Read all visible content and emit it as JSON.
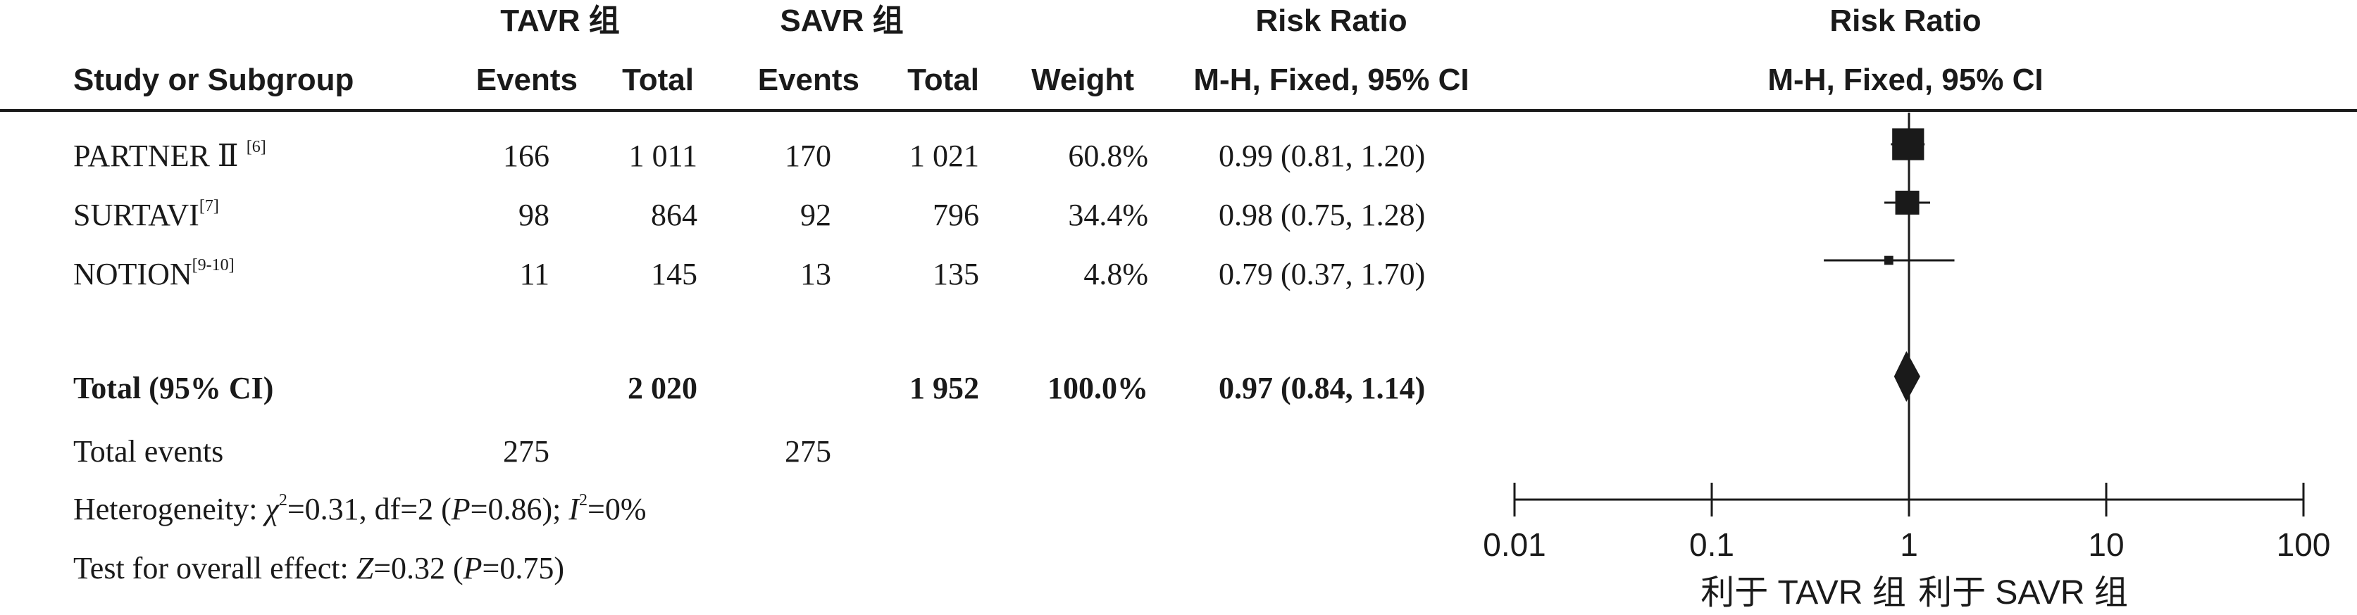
{
  "header": {
    "group1": "TAVR 组",
    "group2": "SAVR 组",
    "rr_title": "Risk Ratio",
    "plot_title": "Risk Ratio",
    "study_col": "Study or Subgroup",
    "events1": "Events",
    "total1": "Total",
    "events2": "Events",
    "total2": "Total",
    "weight": "Weight",
    "method": "M-H, Fixed, 95% CI",
    "plot_method": "M-H, Fixed, 95% CI"
  },
  "studies": [
    {
      "name": "PARTNER Ⅱ",
      "ref": "[6]",
      "e1": "166",
      "t1": "1 011",
      "e2": "170",
      "t2": "1 021",
      "weight": "60.8%",
      "ci": "0.99 (0.81, 1.20)"
    },
    {
      "name": "SURTAVI",
      "ref": "[7]",
      "e1": "98",
      "t1": "864",
      "e2": "92",
      "t2": "796",
      "weight": "34.4%",
      "ci": "0.98 (0.75, 1.28)"
    },
    {
      "name": "NOTION",
      "ref": "[9-10]",
      "e1": "11",
      "t1": "145",
      "e2": "13",
      "t2": "135",
      "weight": "4.8%",
      "ci": "0.79 (0.37, 1.70)"
    }
  ],
  "total": {
    "label": "Total (95% CI)",
    "t1": "2 020",
    "t2": "1 952",
    "weight": "100.0%",
    "ci": "0.97 (0.84, 1.14)"
  },
  "total_events": {
    "label": "Total events",
    "e1": "275",
    "e2": "275"
  },
  "heterogeneity": {
    "prefix": "Heterogeneity: ",
    "chi": "χ",
    "chi_sup": "2",
    "chi_val": "=0.31, df=2 (",
    "p": "P",
    "p_val": "=0.86); ",
    "i": "I",
    "i_sup": "2",
    "i_val": "=0%"
  },
  "overall": {
    "prefix": "Test for overall effect: ",
    "z": "Z",
    "z_val": "=0.32 (",
    "p": "P",
    "p_val": "=0.75)"
  },
  "chart_data": {
    "type": "scatter",
    "subtype": "forest-plot",
    "xscale": "log",
    "xlim": [
      0.01,
      100
    ],
    "xticks": [
      "0.01",
      "0.1",
      "1",
      "10",
      "100"
    ],
    "xtick_values": [
      0.01,
      0.1,
      1,
      10,
      100
    ],
    "reference_line": 1,
    "series": [
      {
        "name": "PARTNER Ⅱ",
        "rr": 0.99,
        "lo": 0.81,
        "hi": 1.2,
        "weight": 60.8
      },
      {
        "name": "SURTAVI",
        "rr": 0.98,
        "lo": 0.75,
        "hi": 1.28,
        "weight": 34.4
      },
      {
        "name": "NOTION",
        "rr": 0.79,
        "lo": 0.37,
        "hi": 1.7,
        "weight": 4.8
      }
    ],
    "pooled": {
      "rr": 0.97,
      "lo": 0.84,
      "hi": 1.14
    },
    "favours_left": "利于 TAVR 组",
    "favours_right": "利于 SAVR 组"
  }
}
